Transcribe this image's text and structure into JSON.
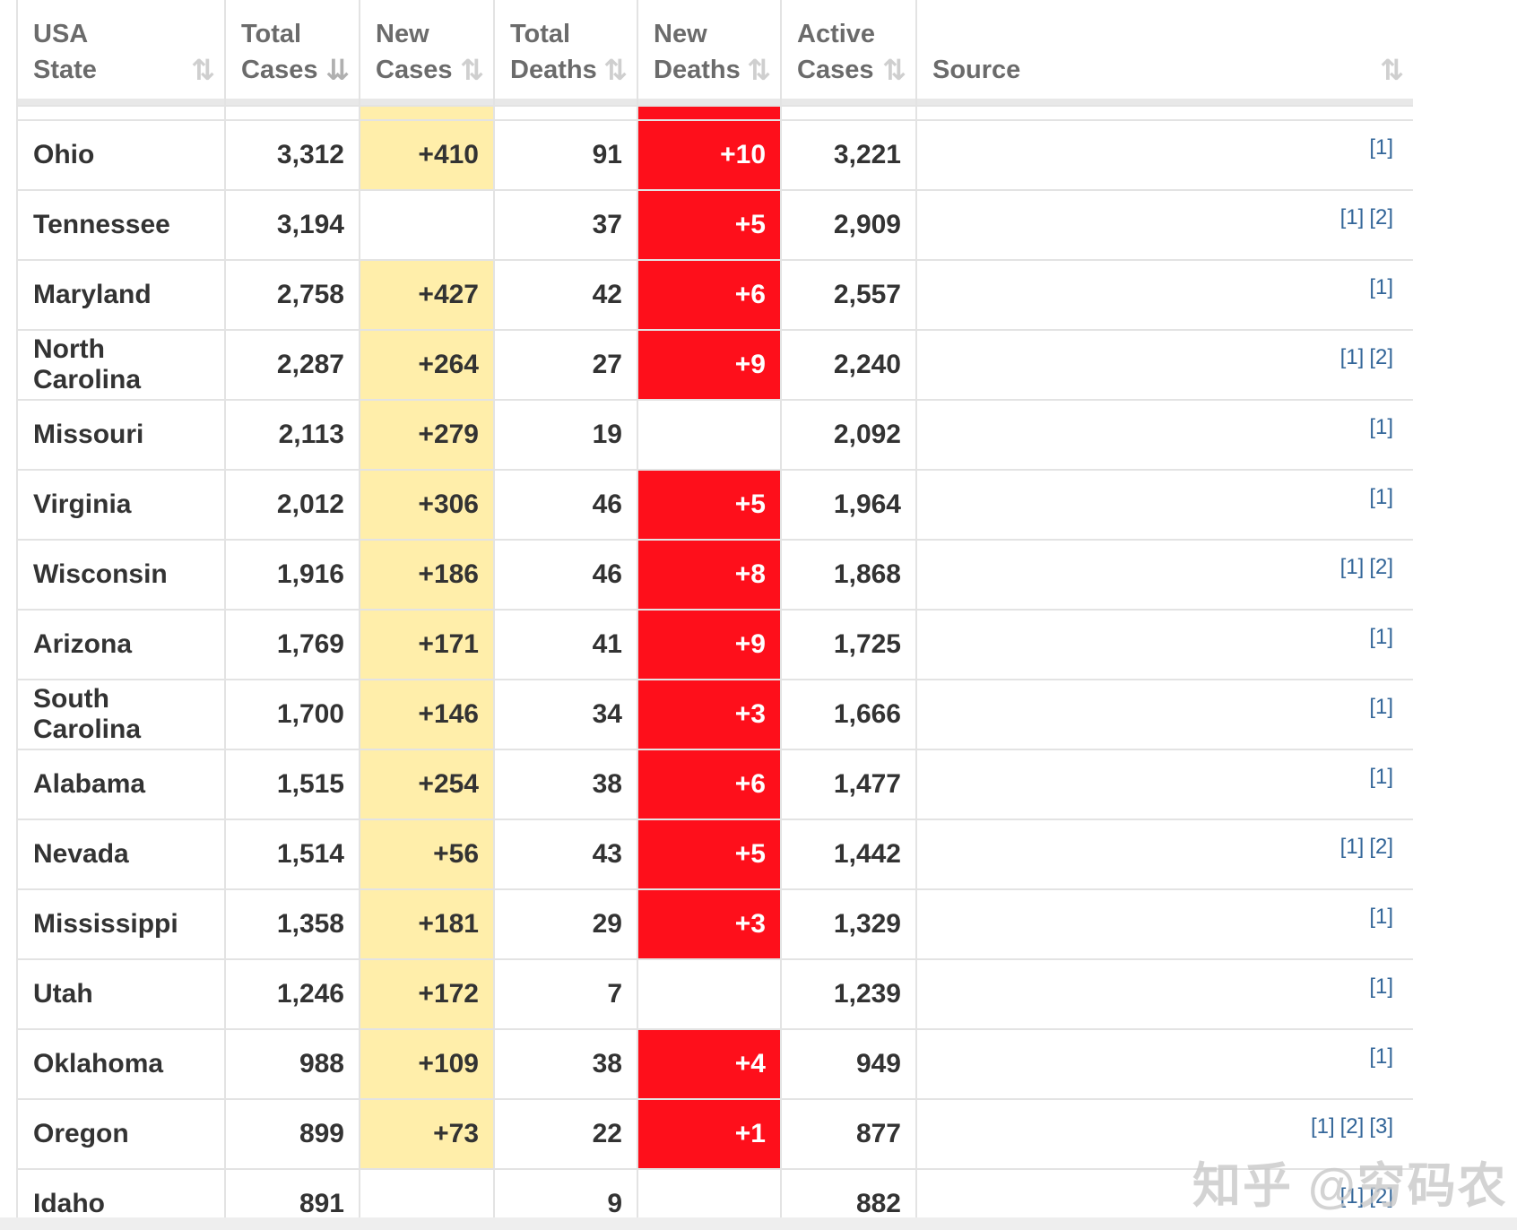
{
  "headers": [
    {
      "line1": "USA",
      "line2": "State"
    },
    {
      "line1": "Total",
      "line2": "Cases"
    },
    {
      "line1": "New",
      "line2": "Cases"
    },
    {
      "line1": "Total",
      "line2": "Deaths"
    },
    {
      "line1": "New",
      "line2": "Deaths"
    },
    {
      "line1": "Active",
      "line2": "Cases"
    },
    {
      "line1": "",
      "line2": "Source"
    }
  ],
  "rows": [
    {
      "state": "Ohio",
      "total_cases": "3,312",
      "new_cases": "+410",
      "total_deaths": "91",
      "new_deaths": "+10",
      "active_cases": "3,221",
      "sources": [
        "[1]"
      ]
    },
    {
      "state": "Tennessee",
      "total_cases": "3,194",
      "new_cases": "",
      "total_deaths": "37",
      "new_deaths": "+5",
      "active_cases": "2,909",
      "sources": [
        "[1]",
        "[2]"
      ]
    },
    {
      "state": "Maryland",
      "total_cases": "2,758",
      "new_cases": "+427",
      "total_deaths": "42",
      "new_deaths": "+6",
      "active_cases": "2,557",
      "sources": [
        "[1]"
      ]
    },
    {
      "state": "North Carolina",
      "total_cases": "2,287",
      "new_cases": "+264",
      "total_deaths": "27",
      "new_deaths": "+9",
      "active_cases": "2,240",
      "sources": [
        "[1]",
        "[2]"
      ]
    },
    {
      "state": "Missouri",
      "total_cases": "2,113",
      "new_cases": "+279",
      "total_deaths": "19",
      "new_deaths": "",
      "active_cases": "2,092",
      "sources": [
        "[1]"
      ]
    },
    {
      "state": "Virginia",
      "total_cases": "2,012",
      "new_cases": "+306",
      "total_deaths": "46",
      "new_deaths": "+5",
      "active_cases": "1,964",
      "sources": [
        "[1]"
      ]
    },
    {
      "state": "Wisconsin",
      "total_cases": "1,916",
      "new_cases": "+186",
      "total_deaths": "46",
      "new_deaths": "+8",
      "active_cases": "1,868",
      "sources": [
        "[1]",
        "[2]"
      ]
    },
    {
      "state": "Arizona",
      "total_cases": "1,769",
      "new_cases": "+171",
      "total_deaths": "41",
      "new_deaths": "+9",
      "active_cases": "1,725",
      "sources": [
        "[1]"
      ]
    },
    {
      "state": "South Carolina",
      "total_cases": "1,700",
      "new_cases": "+146",
      "total_deaths": "34",
      "new_deaths": "+3",
      "active_cases": "1,666",
      "sources": [
        "[1]"
      ]
    },
    {
      "state": "Alabama",
      "total_cases": "1,515",
      "new_cases": "+254",
      "total_deaths": "38",
      "new_deaths": "+6",
      "active_cases": "1,477",
      "sources": [
        "[1]"
      ]
    },
    {
      "state": "Nevada",
      "total_cases": "1,514",
      "new_cases": "+56",
      "total_deaths": "43",
      "new_deaths": "+5",
      "active_cases": "1,442",
      "sources": [
        "[1]",
        "[2]"
      ]
    },
    {
      "state": "Mississippi",
      "total_cases": "1,358",
      "new_cases": "+181",
      "total_deaths": "29",
      "new_deaths": "+3",
      "active_cases": "1,329",
      "sources": [
        "[1]"
      ]
    },
    {
      "state": "Utah",
      "total_cases": "1,246",
      "new_cases": "+172",
      "total_deaths": "7",
      "new_deaths": "",
      "active_cases": "1,239",
      "sources": [
        "[1]"
      ]
    },
    {
      "state": "Oklahoma",
      "total_cases": "988",
      "new_cases": "+109",
      "total_deaths": "38",
      "new_deaths": "+4",
      "active_cases": "949",
      "sources": [
        "[1]"
      ]
    },
    {
      "state": "Oregon",
      "total_cases": "899",
      "new_cases": "+73",
      "total_deaths": "22",
      "new_deaths": "+1",
      "active_cases": "877",
      "sources": [
        "[1]",
        "[2]",
        "[3]"
      ]
    },
    {
      "state": "Idaho",
      "total_cases": "891",
      "new_cases": "",
      "total_deaths": "9",
      "new_deaths": "",
      "active_cases": "882",
      "sources": [
        "[1]",
        "[2]"
      ]
    }
  ],
  "sort_icons": {
    "default": "⇅",
    "descending": "⇊"
  },
  "colors": {
    "new_cases_bg": "#ffeeaa",
    "new_deaths_bg": "#fe0f1b",
    "link": "#336699"
  },
  "watermark": "知乎 @穷码农"
}
